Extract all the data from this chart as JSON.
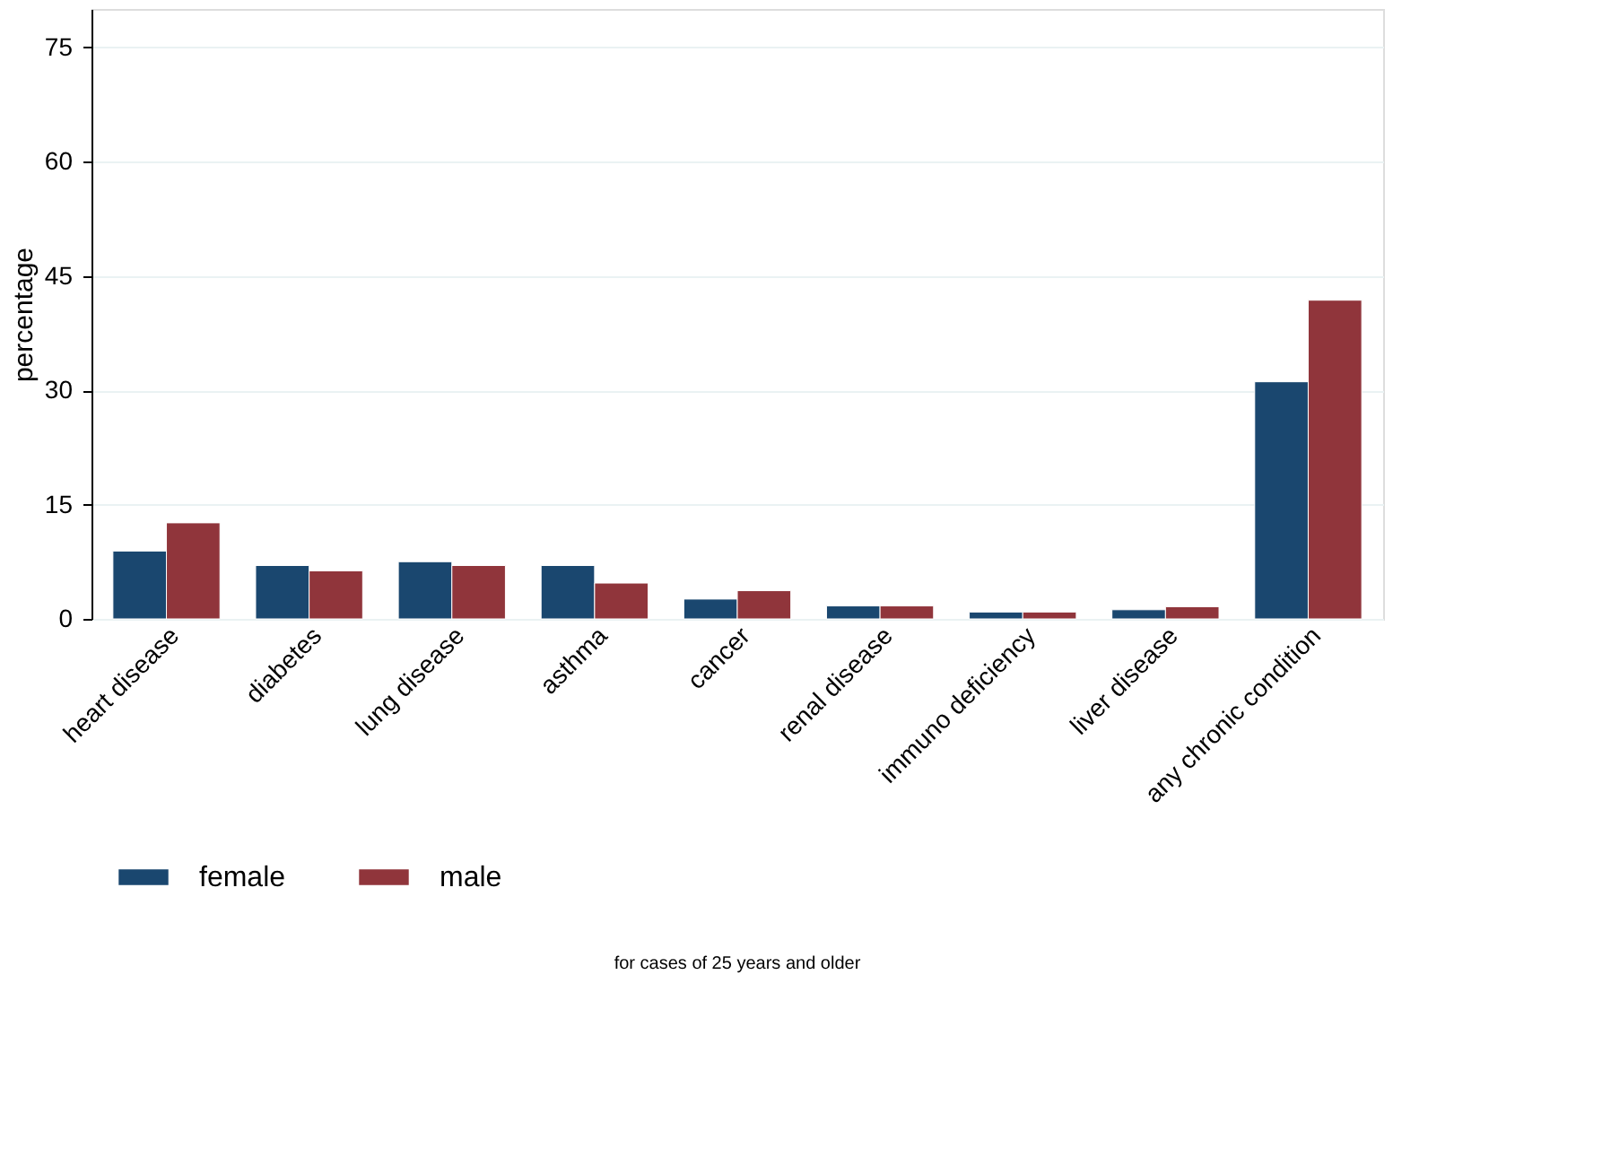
{
  "chart_data": {
    "type": "bar",
    "ylabel": "percentage",
    "categories": [
      "heart disease",
      "diabetes",
      "lung disease",
      "asthma",
      "cancer",
      "renal disease",
      "immuno deficiency",
      "liver disease",
      "any chronic condition"
    ],
    "series": [
      {
        "name": "female",
        "color": "#1a476f",
        "values": [
          8.9,
          7.0,
          7.5,
          7.0,
          2.6,
          1.7,
          0.9,
          1.2,
          31.1
        ]
      },
      {
        "name": "male",
        "color": "#90353b",
        "values": [
          12.6,
          6.3,
          7.0,
          4.7,
          3.7,
          1.7,
          0.9,
          1.6,
          41.8
        ]
      }
    ],
    "ylim": [
      0,
      80
    ],
    "yticks": [
      0,
      15,
      30,
      45,
      60,
      75
    ],
    "grid": "y",
    "legend": "bottom",
    "annotations": [
      "for cases of 25 years and older"
    ]
  }
}
